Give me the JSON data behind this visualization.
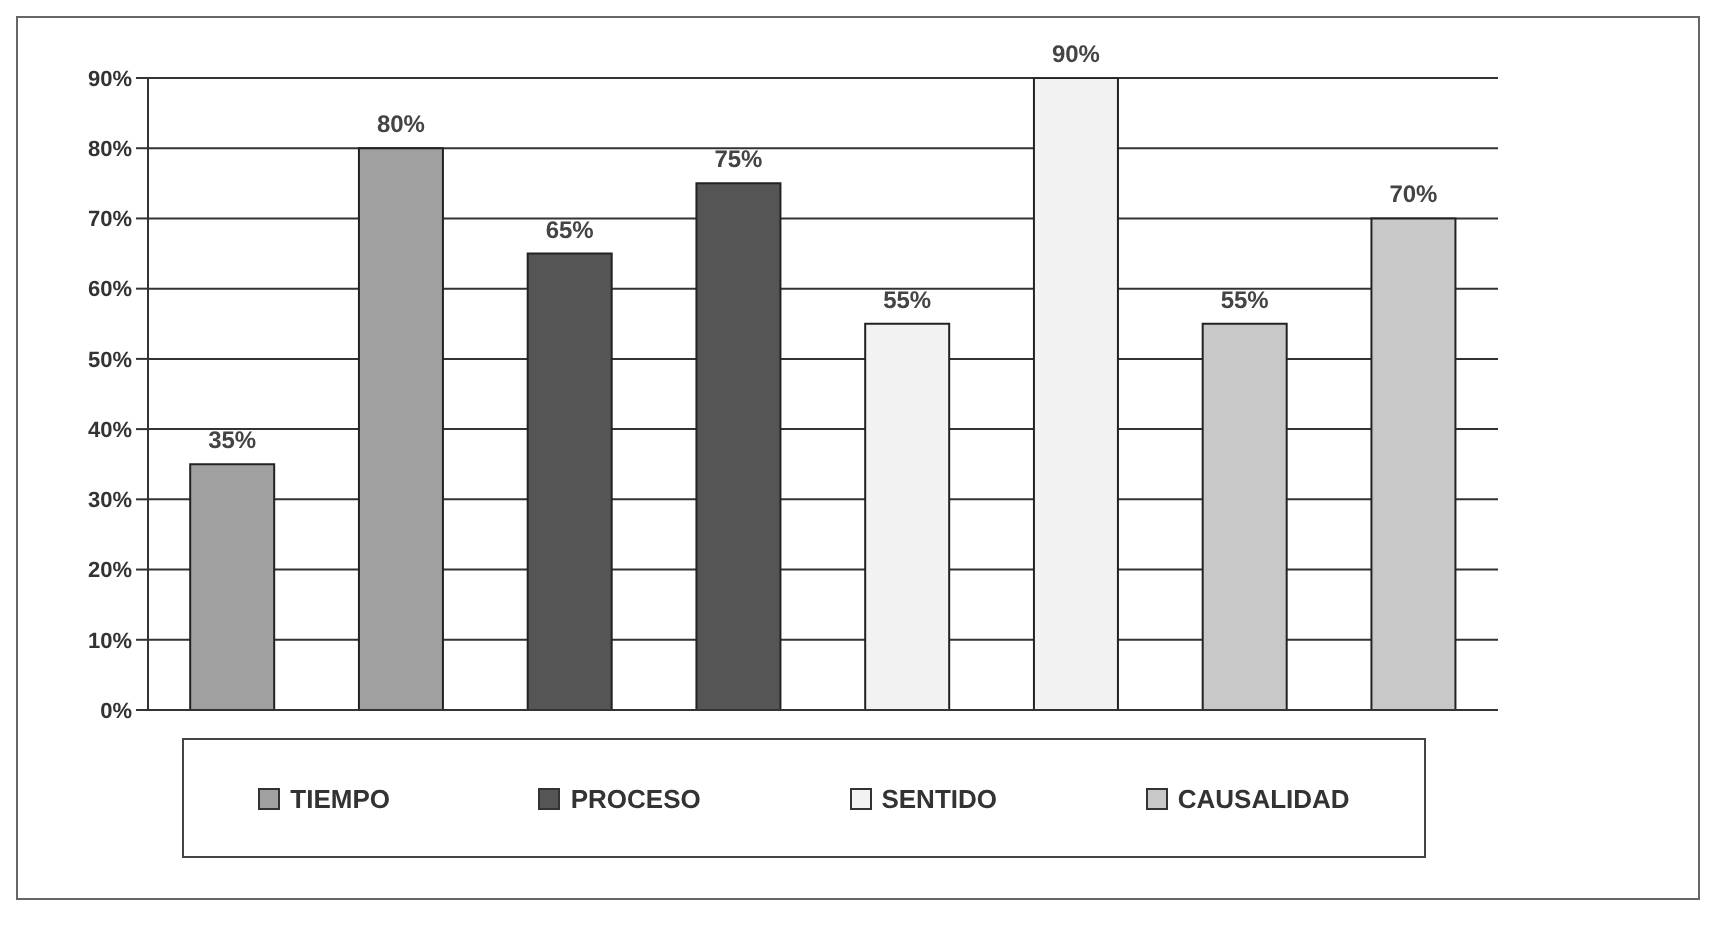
{
  "chart_data": {
    "type": "bar",
    "categories": [
      null,
      null,
      null,
      null,
      null,
      null,
      null,
      null
    ],
    "series": [
      {
        "name": "TIEMPO",
        "color": "#a0a0a0",
        "values": [
          35,
          80,
          null,
          null,
          null,
          null,
          null,
          null
        ],
        "value_labels": [
          "35%",
          "80%",
          null,
          null,
          null,
          null,
          null,
          null
        ]
      },
      {
        "name": "PROCESO",
        "color": "#555555",
        "values": [
          null,
          null,
          65,
          75,
          null,
          null,
          null,
          null
        ],
        "value_labels": [
          null,
          null,
          "65%",
          "75%",
          null,
          null,
          null,
          null
        ]
      },
      {
        "name": "SENTIDO",
        "color": "#f2f2f2",
        "values": [
          null,
          null,
          null,
          null,
          55,
          90,
          null,
          null
        ],
        "value_labels": [
          null,
          null,
          null,
          null,
          "55%",
          "90%",
          null,
          null
        ]
      },
      {
        "name": "CAUSALIDAD",
        "color": "#c8c8c8",
        "values": [
          null,
          null,
          null,
          null,
          null,
          null,
          55,
          70
        ],
        "value_labels": [
          null,
          null,
          null,
          null,
          null,
          null,
          "55%",
          "70%"
        ]
      }
    ],
    "ylim": [
      0,
      90
    ],
    "yticks": [
      {
        "value": 0,
        "label": "0%"
      },
      {
        "value": 10,
        "label": "10%"
      },
      {
        "value": 20,
        "label": "20%"
      },
      {
        "value": 30,
        "label": "30%"
      },
      {
        "value": 40,
        "label": "40%"
      },
      {
        "value": 50,
        "label": "50%"
      },
      {
        "value": 60,
        "label": "60%"
      },
      {
        "value": 70,
        "label": "70%"
      },
      {
        "value": 80,
        "label": "80%"
      },
      {
        "value": 90,
        "label": "90%"
      }
    ],
    "grid": "y",
    "legend": "bottom"
  }
}
